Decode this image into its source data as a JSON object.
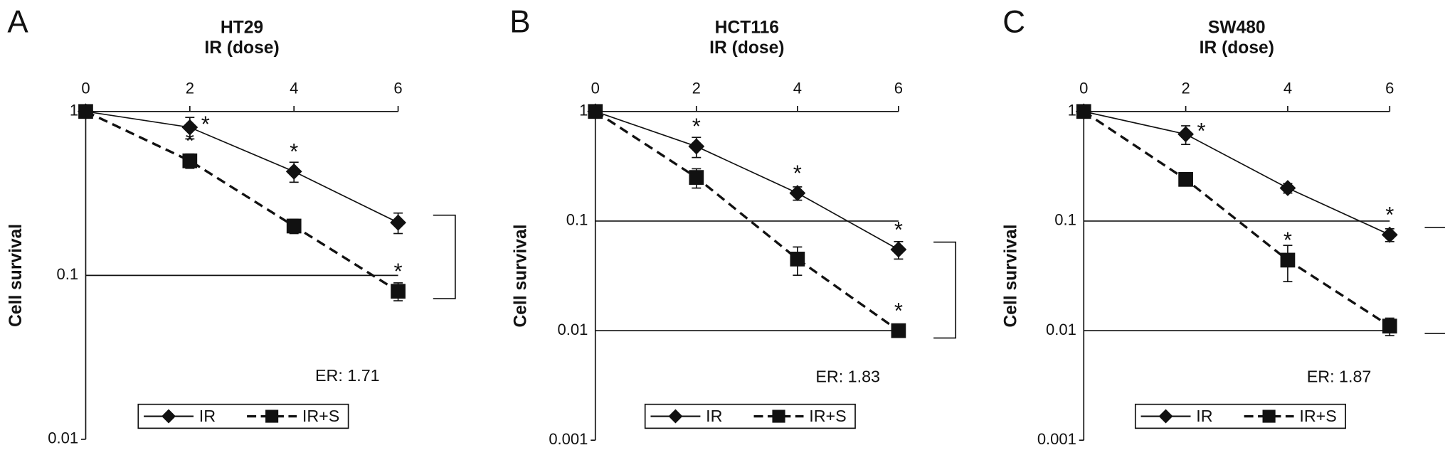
{
  "chart_data": [
    {
      "type": "line",
      "panel": "A",
      "title": "HT29",
      "subtitle": "IR (dose)",
      "ylabel": "Cell survival",
      "y_scale": "log",
      "x": [
        0,
        2,
        4,
        6
      ],
      "xlim": [
        0,
        6
      ],
      "xticks": [
        0,
        2,
        4,
        6
      ],
      "ylim": [
        0.01,
        1
      ],
      "yticks": [
        1,
        0.1,
        0.01
      ],
      "grid": true,
      "er_label": "ER: 1.71",
      "series": [
        {
          "name": "IR",
          "color": "#111111",
          "marker": "diamond",
          "dashed": false,
          "values": [
            1,
            0.8,
            0.43,
            0.21
          ],
          "errors": [
            0,
            0.12,
            0.06,
            0.03
          ],
          "annotations": [
            {
              "text": "*",
              "x": 2
            },
            {
              "text": "*",
              "x": 4
            }
          ]
        },
        {
          "name": "IR+S",
          "color": "#111111",
          "marker": "square",
          "dashed": true,
          "values": [
            1,
            0.5,
            0.2,
            0.08
          ],
          "errors": [
            0,
            0.05,
            0.02,
            0.01
          ],
          "annotations": [
            {
              "text": "*",
              "x": 2
            },
            {
              "text": "*",
              "x": 6
            }
          ]
        }
      ]
    },
    {
      "type": "line",
      "panel": "B",
      "title": "HCT116",
      "subtitle": "IR (dose)",
      "ylabel": "Cell survival",
      "y_scale": "log",
      "x": [
        0,
        2,
        4,
        6
      ],
      "xlim": [
        0,
        6
      ],
      "xticks": [
        0,
        2,
        4,
        6
      ],
      "ylim": [
        0.001,
        1
      ],
      "yticks": [
        1,
        0.1,
        0.01,
        0.001
      ],
      "grid": true,
      "er_label": "ER: 1.83",
      "series": [
        {
          "name": "IR",
          "color": "#111111",
          "marker": "diamond",
          "dashed": false,
          "values": [
            1,
            0.48,
            0.18,
            0.055
          ],
          "errors": [
            0,
            0.1,
            0.025,
            0.01
          ],
          "annotations": [
            {
              "text": "*",
              "x": 2
            },
            {
              "text": "*",
              "x": 4
            },
            {
              "text": "*",
              "x": 6
            }
          ]
        },
        {
          "name": "IR+S",
          "color": "#111111",
          "marker": "square",
          "dashed": true,
          "values": [
            1,
            0.25,
            0.045,
            0.01
          ],
          "errors": [
            0,
            0.05,
            0.013,
            0.001
          ],
          "annotations": [
            {
              "text": "*",
              "x": 6
            }
          ]
        }
      ]
    },
    {
      "type": "line",
      "panel": "C",
      "title": "SW480",
      "subtitle": "IR (dose)",
      "ylabel": "Cell survival",
      "y_scale": "log",
      "x": [
        0,
        2,
        4,
        6
      ],
      "xlim": [
        0,
        6
      ],
      "xticks": [
        0,
        2,
        4,
        6
      ],
      "ylim": [
        0.001,
        1
      ],
      "yticks": [
        1,
        0.1,
        0.01,
        0.001
      ],
      "grid": true,
      "er_label": "ER: 1.87",
      "series": [
        {
          "name": "IR",
          "color": "#111111",
          "marker": "diamond",
          "dashed": false,
          "values": [
            1,
            0.62,
            0.2,
            0.075
          ],
          "errors": [
            0,
            0.12,
            0.02,
            0.01
          ],
          "annotations": [
            {
              "text": "*",
              "x": 2
            },
            {
              "text": "*",
              "x": 6
            }
          ]
        },
        {
          "name": "IR+S",
          "color": "#111111",
          "marker": "square",
          "dashed": true,
          "values": [
            1,
            0.24,
            0.044,
            0.011
          ],
          "errors": [
            0,
            0.02,
            0.016,
            0.002
          ],
          "annotations": [
            {
              "text": "*",
              "x": 4
            }
          ]
        }
      ]
    }
  ]
}
